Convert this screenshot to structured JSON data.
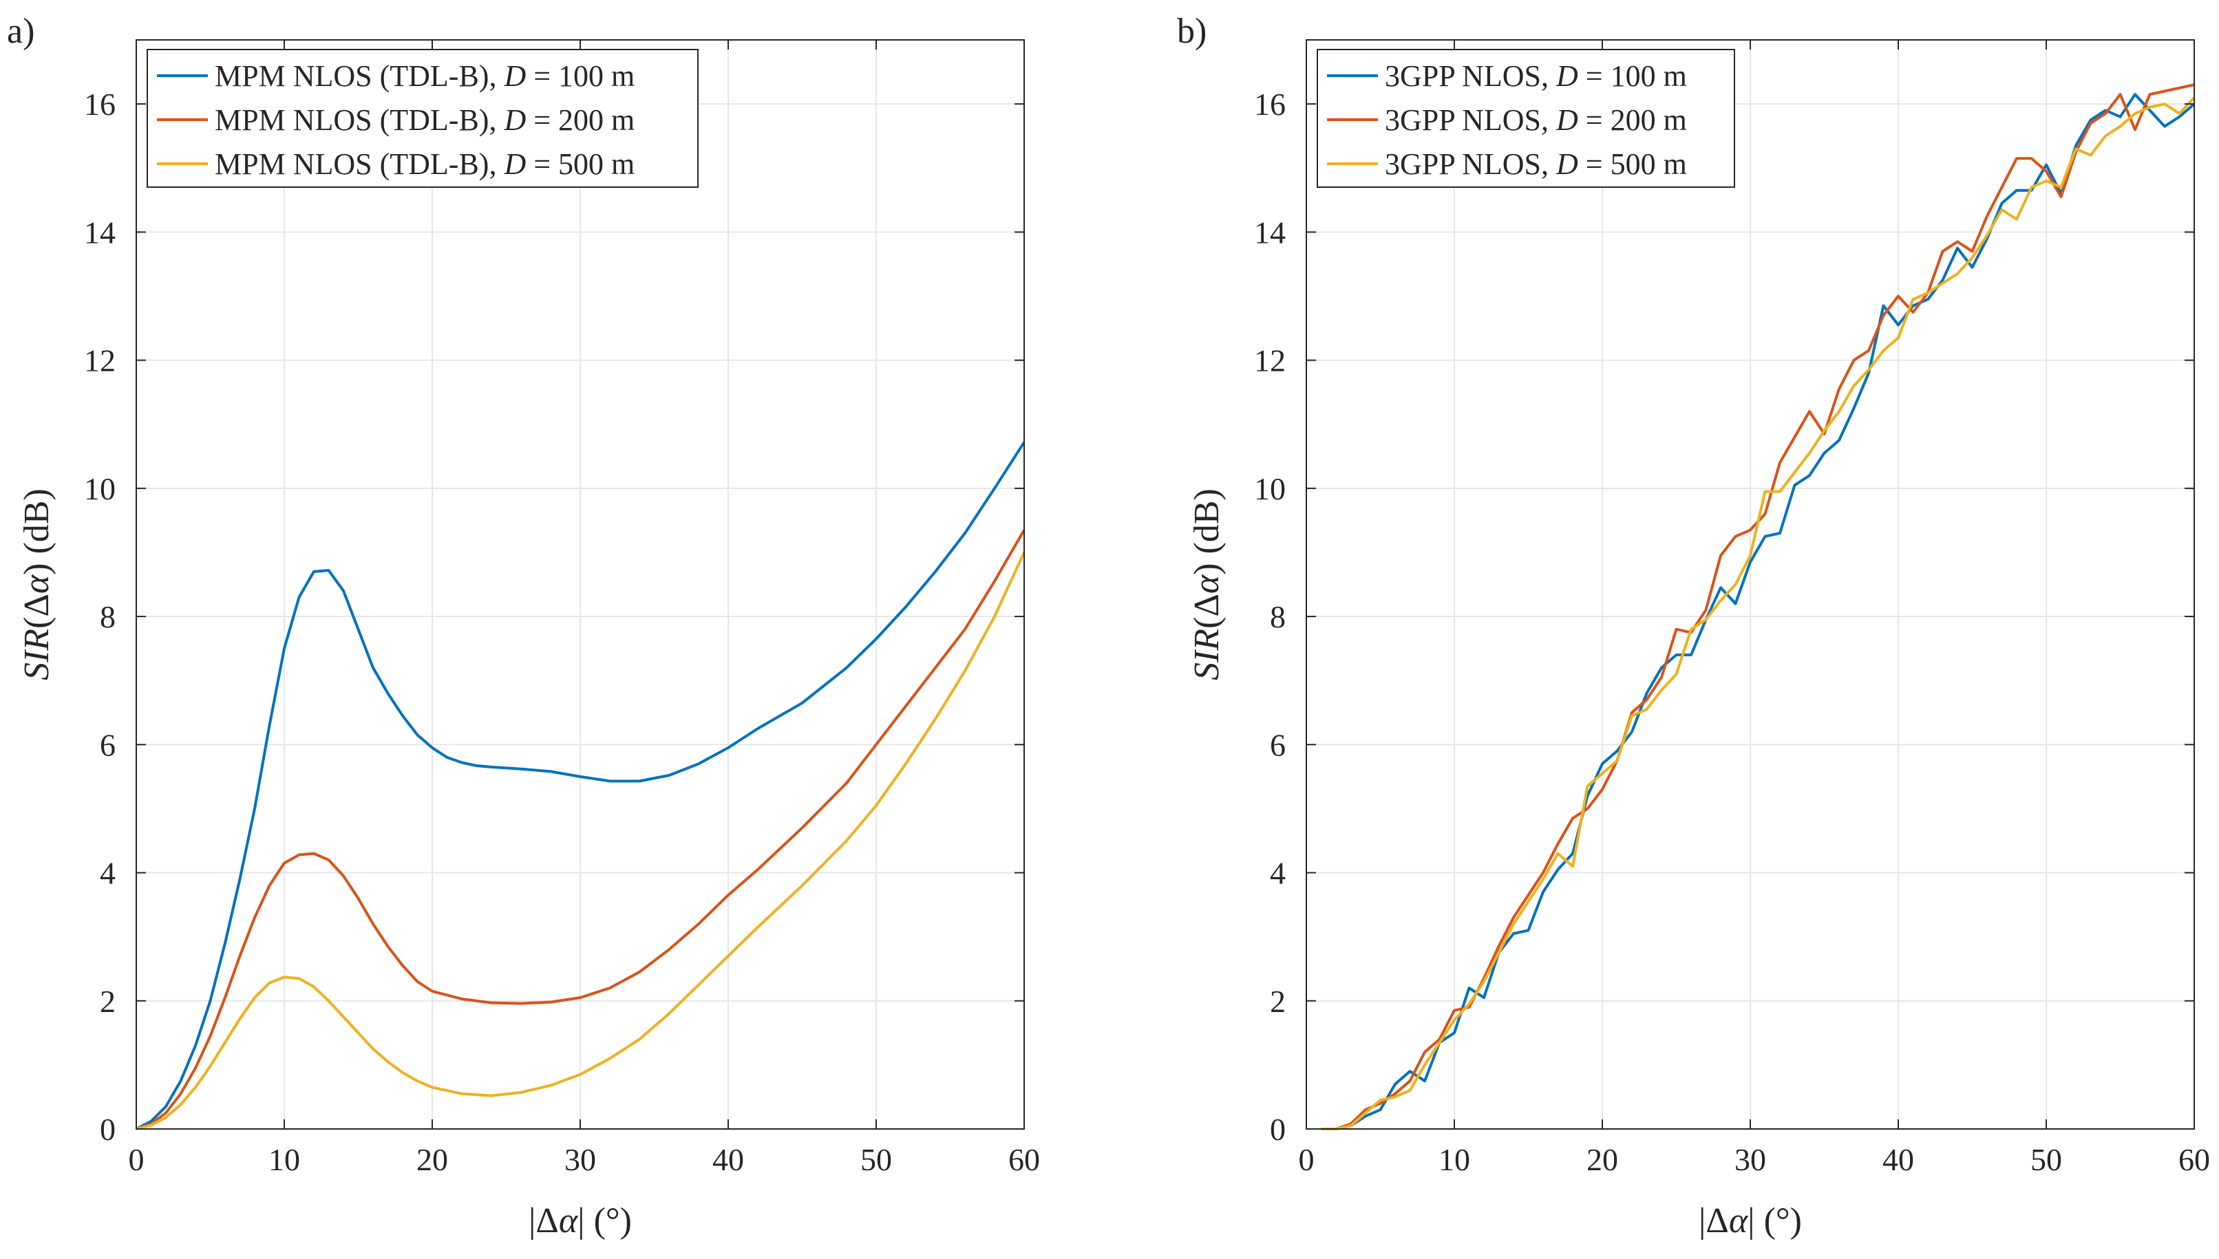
{
  "chart_data": [
    {
      "type": "line",
      "panel_label": "a)",
      "xlabel": "|Δα|  (°)",
      "ylabel": "SIR(Δα)  (dB)",
      "xlim": [
        0,
        60
      ],
      "ylim": [
        0,
        17
      ],
      "xticks": [
        0,
        10,
        20,
        30,
        40,
        50,
        60
      ],
      "yticks": [
        0,
        2,
        4,
        6,
        8,
        10,
        12,
        14,
        16
      ],
      "grid": true,
      "legend_position": "top-left",
      "series": [
        {
          "name": "MPM NLOS (TDL-B), D = 100 m",
          "color": "#0072BD",
          "x": [
            0,
            1,
            2,
            3,
            4,
            5,
            6,
            7,
            8,
            9,
            10,
            11,
            12,
            13,
            14,
            15,
            16,
            17,
            18,
            19,
            20,
            21,
            22,
            23,
            24,
            26,
            28,
            30,
            32,
            34,
            36,
            38,
            40,
            42,
            45,
            48,
            50,
            52,
            54,
            56,
            58,
            60
          ],
          "y": [
            0,
            0.12,
            0.35,
            0.75,
            1.3,
            2.0,
            2.9,
            3.9,
            5.0,
            6.3,
            7.5,
            8.3,
            8.7,
            8.72,
            8.4,
            7.8,
            7.2,
            6.8,
            6.45,
            6.15,
            5.95,
            5.8,
            5.72,
            5.67,
            5.65,
            5.62,
            5.58,
            5.5,
            5.43,
            5.43,
            5.52,
            5.7,
            5.95,
            6.25,
            6.65,
            7.2,
            7.65,
            8.15,
            8.7,
            9.3,
            10.0,
            10.72
          ]
        },
        {
          "name": "MPM NLOS (TDL-B), D = 200 m",
          "color": "#D95319",
          "x": [
            0,
            1,
            2,
            3,
            4,
            5,
            6,
            7,
            8,
            9,
            10,
            11,
            12,
            13,
            14,
            15,
            16,
            17,
            18,
            19,
            20,
            22,
            24,
            26,
            28,
            30,
            32,
            34,
            36,
            38,
            40,
            42,
            45,
            48,
            50,
            52,
            54,
            56,
            58,
            60
          ],
          "y": [
            0,
            0.08,
            0.25,
            0.55,
            0.95,
            1.45,
            2.05,
            2.7,
            3.3,
            3.8,
            4.15,
            4.28,
            4.3,
            4.2,
            3.95,
            3.6,
            3.2,
            2.85,
            2.55,
            2.3,
            2.15,
            2.03,
            1.97,
            1.96,
            1.98,
            2.05,
            2.2,
            2.45,
            2.8,
            3.2,
            3.65,
            4.05,
            4.7,
            5.4,
            6.0,
            6.6,
            7.2,
            7.8,
            8.55,
            9.35
          ]
        },
        {
          "name": "MPM NLOS (TDL-B), D = 500 m",
          "color": "#EDB120",
          "x": [
            0,
            1,
            2,
            3,
            4,
            5,
            6,
            7,
            8,
            9,
            10,
            11,
            12,
            13,
            14,
            15,
            16,
            17,
            18,
            19,
            20,
            22,
            24,
            26,
            28,
            30,
            32,
            34,
            36,
            38,
            40,
            42,
            45,
            48,
            50,
            52,
            54,
            56,
            58,
            60
          ],
          "y": [
            0,
            0.06,
            0.18,
            0.38,
            0.65,
            0.98,
            1.35,
            1.72,
            2.05,
            2.28,
            2.37,
            2.35,
            2.22,
            2.0,
            1.75,
            1.5,
            1.25,
            1.05,
            0.88,
            0.75,
            0.65,
            0.55,
            0.52,
            0.57,
            0.68,
            0.85,
            1.1,
            1.4,
            1.8,
            2.25,
            2.7,
            3.15,
            3.8,
            4.5,
            5.05,
            5.7,
            6.4,
            7.15,
            8.0,
            9.0
          ]
        }
      ]
    },
    {
      "type": "line",
      "panel_label": "b)",
      "xlabel": "|Δα|  (°)",
      "ylabel": "SIR(Δα)  (dB)",
      "xlim": [
        0,
        60
      ],
      "ylim": [
        0,
        17
      ],
      "xticks": [
        0,
        10,
        20,
        30,
        40,
        50,
        60
      ],
      "yticks": [
        0,
        2,
        4,
        6,
        8,
        10,
        12,
        14,
        16
      ],
      "grid": true,
      "legend_position": "top-left",
      "series": [
        {
          "name": "3GPP NLOS, D = 100 m",
          "color": "#0072BD",
          "x": [
            1,
            2,
            3,
            4,
            5,
            6,
            7,
            8,
            9,
            10,
            11,
            12,
            13,
            14,
            15,
            16,
            17,
            18,
            19,
            20,
            21,
            22,
            23,
            24,
            25,
            26,
            27,
            28,
            29,
            30,
            31,
            32,
            33,
            34,
            35,
            36,
            37,
            38,
            39,
            40,
            41,
            42,
            43,
            44,
            45,
            46,
            47,
            48,
            49,
            50,
            51,
            52,
            53,
            54,
            55,
            56,
            57,
            58,
            59,
            60
          ],
          "y": [
            0,
            0,
            0.05,
            0.2,
            0.3,
            0.7,
            0.9,
            0.75,
            1.35,
            1.5,
            2.2,
            2.05,
            2.75,
            3.05,
            3.1,
            3.7,
            4.05,
            4.3,
            5.2,
            5.7,
            5.9,
            6.2,
            6.8,
            7.2,
            7.4,
            7.4,
            7.95,
            8.45,
            8.2,
            8.85,
            9.25,
            9.3,
            10.05,
            10.2,
            10.55,
            10.75,
            11.25,
            11.8,
            12.85,
            12.55,
            12.85,
            12.95,
            13.25,
            13.75,
            13.45,
            13.9,
            14.45,
            14.65,
            14.65,
            15.05,
            14.6,
            15.35,
            15.75,
            15.9,
            15.8,
            16.15,
            15.9,
            15.65,
            15.8,
            16.0
          ]
        },
        {
          "name": "3GPP NLOS, D = 200 m",
          "color": "#D95319",
          "x": [
            1,
            2,
            3,
            4,
            5,
            6,
            7,
            8,
            9,
            10,
            11,
            12,
            13,
            14,
            15,
            16,
            17,
            18,
            19,
            20,
            21,
            22,
            23,
            24,
            25,
            26,
            27,
            28,
            29,
            30,
            31,
            32,
            33,
            34,
            35,
            36,
            37,
            38,
            39,
            40,
            41,
            42,
            43,
            44,
            45,
            46,
            47,
            48,
            49,
            50,
            51,
            52,
            53,
            54,
            55,
            56,
            57,
            58,
            59,
            60
          ],
          "y": [
            0,
            0,
            0.08,
            0.3,
            0.4,
            0.55,
            0.75,
            1.2,
            1.4,
            1.85,
            1.9,
            2.35,
            2.85,
            3.3,
            3.65,
            4.0,
            4.45,
            4.85,
            5.0,
            5.3,
            5.75,
            6.5,
            6.7,
            7.05,
            7.8,
            7.75,
            8.1,
            8.95,
            9.25,
            9.35,
            9.6,
            10.4,
            10.8,
            11.2,
            10.85,
            11.55,
            12.0,
            12.15,
            12.7,
            13.0,
            12.75,
            13.05,
            13.7,
            13.85,
            13.7,
            14.25,
            14.7,
            15.15,
            15.15,
            14.95,
            14.55,
            15.25,
            15.7,
            15.85,
            16.15,
            15.6,
            16.15,
            16.2,
            16.25,
            16.3
          ]
        },
        {
          "name": "3GPP NLOS, D = 500 m",
          "color": "#EDB120",
          "x": [
            1,
            2,
            3,
            4,
            5,
            6,
            7,
            8,
            9,
            10,
            11,
            12,
            13,
            14,
            15,
            16,
            17,
            18,
            19,
            20,
            21,
            22,
            23,
            24,
            25,
            26,
            27,
            28,
            29,
            30,
            31,
            32,
            33,
            34,
            35,
            36,
            37,
            38,
            39,
            40,
            41,
            42,
            43,
            44,
            45,
            46,
            47,
            48,
            49,
            50,
            51,
            52,
            53,
            54,
            55,
            56,
            57,
            58,
            59,
            60
          ],
          "y": [
            0,
            0,
            0.05,
            0.25,
            0.45,
            0.5,
            0.6,
            1.0,
            1.35,
            1.7,
            1.95,
            2.3,
            2.75,
            3.2,
            3.55,
            3.9,
            4.3,
            4.1,
            5.35,
            5.55,
            5.75,
            6.45,
            6.55,
            6.85,
            7.1,
            7.8,
            7.95,
            8.25,
            8.5,
            8.95,
            9.95,
            9.95,
            10.25,
            10.55,
            10.9,
            11.2,
            11.6,
            11.85,
            12.15,
            12.35,
            12.95,
            13.05,
            13.2,
            13.35,
            13.6,
            13.95,
            14.35,
            14.2,
            14.7,
            14.8,
            14.7,
            15.3,
            15.2,
            15.5,
            15.65,
            15.85,
            15.95,
            16.0,
            15.85,
            16.1
          ]
        }
      ]
    }
  ]
}
